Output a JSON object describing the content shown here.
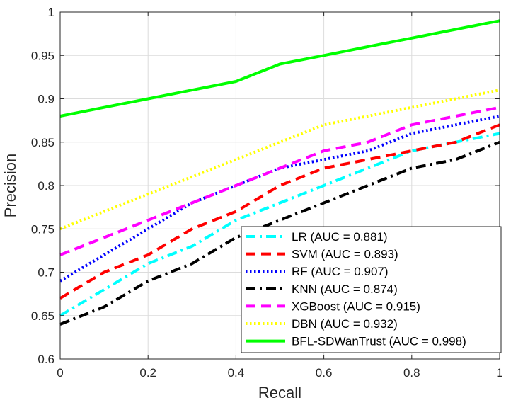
{
  "chart_data": {
    "type": "line",
    "title": "",
    "xlabel": "Recall",
    "ylabel": "Precision",
    "xlim": [
      0,
      1
    ],
    "ylim": [
      0.6,
      1
    ],
    "grid": true,
    "legend_position": "bottom-right",
    "xticks": [
      0,
      0.2,
      0.4,
      0.6,
      0.8,
      1
    ],
    "xtick_labels": [
      "0",
      "0.2",
      "0.4",
      "0.6",
      "0.8",
      "1"
    ],
    "yticks": [
      0.6,
      0.65,
      0.7,
      0.75,
      0.8,
      0.85,
      0.9,
      0.95,
      1
    ],
    "ytick_labels": [
      "0.6",
      "0.65",
      "0.7",
      "0.75",
      "0.8",
      "0.85",
      "0.9",
      "0.95",
      "1"
    ],
    "x": [
      0,
      0.1,
      0.2,
      0.3,
      0.4,
      0.5,
      0.6,
      0.7,
      0.8,
      0.9,
      1.0
    ],
    "series": [
      {
        "name": "LR (AUC = 0.881)",
        "color": "#00FFFF",
        "dash": "dashdot",
        "values": [
          0.65,
          0.68,
          0.71,
          0.73,
          0.76,
          0.78,
          0.8,
          0.82,
          0.84,
          0.85,
          0.86
        ]
      },
      {
        "name": "SVM (AUC = 0.893)",
        "color": "#FF0000",
        "dash": "dashed",
        "values": [
          0.67,
          0.7,
          0.72,
          0.75,
          0.77,
          0.8,
          0.82,
          0.83,
          0.84,
          0.85,
          0.87
        ]
      },
      {
        "name": "RF (AUC = 0.907)",
        "color": "#0000FF",
        "dash": "dotted",
        "values": [
          0.69,
          0.72,
          0.75,
          0.78,
          0.8,
          0.82,
          0.83,
          0.84,
          0.86,
          0.87,
          0.88
        ]
      },
      {
        "name": "KNN (AUC = 0.874)",
        "color": "#000000",
        "dash": "dashdot",
        "values": [
          0.64,
          0.66,
          0.69,
          0.71,
          0.74,
          0.76,
          0.78,
          0.8,
          0.82,
          0.83,
          0.85
        ]
      },
      {
        "name": "XGBoost (AUC = 0.915)",
        "color": "#FF00FF",
        "dash": "dashed",
        "values": [
          0.72,
          0.74,
          0.76,
          0.78,
          0.8,
          0.82,
          0.84,
          0.85,
          0.87,
          0.88,
          0.89
        ]
      },
      {
        "name": "DBN (AUC = 0.932)",
        "color": "#FFFF00",
        "dash": "dotted",
        "values": [
          0.75,
          0.77,
          0.79,
          0.81,
          0.83,
          0.85,
          0.87,
          0.88,
          0.89,
          0.9,
          0.91
        ]
      },
      {
        "name": "BFL-SDWanTrust (AUC = 0.998)",
        "color": "#00FF00",
        "dash": "solid",
        "values": [
          0.88,
          0.89,
          0.9,
          0.91,
          0.92,
          0.94,
          0.95,
          0.96,
          0.97,
          0.98,
          0.99
        ]
      }
    ]
  }
}
